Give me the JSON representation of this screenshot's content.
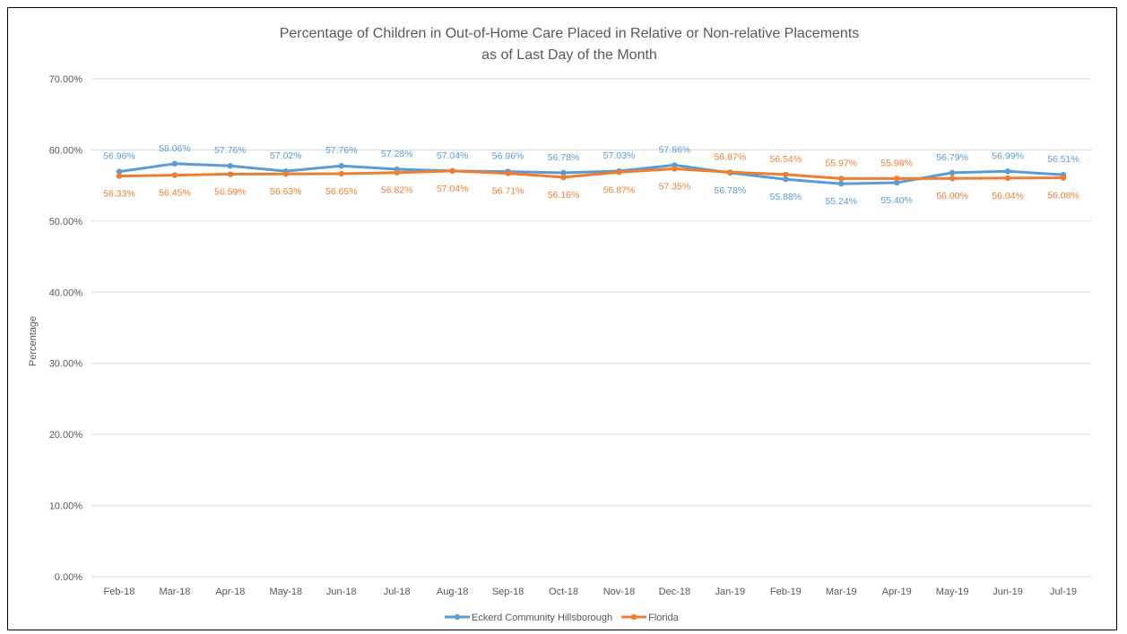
{
  "chart_data": {
    "type": "line",
    "title_lines": [
      "Percentage of Children in Out-of-Home Care Placed in Relative or Non-relative Placements",
      "as of Last Day of the Month"
    ],
    "xlabel": "",
    "ylabel": "Percentage",
    "ylim": [
      0,
      70
    ],
    "y_ticks": [
      "0.00%",
      "10.00%",
      "20.00%",
      "30.00%",
      "40.00%",
      "50.00%",
      "60.00%",
      "70.00%"
    ],
    "grid": true,
    "legend_position": "bottom",
    "categories": [
      "Feb-18",
      "Mar-18",
      "Apr-18",
      "May-18",
      "Jun-18",
      "Jul-18",
      "Aug-18",
      "Sep-18",
      "Oct-18",
      "Nov-18",
      "Dec-18",
      "Jan-19",
      "Feb-19",
      "Mar-19",
      "Apr-19",
      "May-19",
      "Jun-19",
      "Jul-19"
    ],
    "series": [
      {
        "name": "Eckerd Community Hillsborough",
        "color": "#5B9BD5",
        "values": [
          56.96,
          58.06,
          57.76,
          57.02,
          57.76,
          57.28,
          57.04,
          56.96,
          56.78,
          57.03,
          57.86,
          56.78,
          55.88,
          55.24,
          55.4,
          56.79,
          56.99,
          56.51
        ],
        "labels": [
          "56.96%",
          "58.06%",
          "57.76%",
          "57.02%",
          "57.76%",
          "57.28%",
          "57.04%",
          "56.96%",
          "56.78%",
          "57.03%",
          "57.86%",
          "56.78%",
          "55.88%",
          "55.24%",
          "55.40%",
          "56.79%",
          "56.99%",
          "56.51%"
        ],
        "label_pos": [
          "above",
          "above",
          "above",
          "above",
          "above",
          "above",
          "above",
          "above",
          "above",
          "above",
          "above",
          "below",
          "below",
          "below",
          "below",
          "above",
          "above",
          "above"
        ]
      },
      {
        "name": "Florida",
        "color": "#ED7D31",
        "values": [
          56.33,
          56.45,
          56.59,
          56.63,
          56.65,
          56.82,
          57.04,
          56.71,
          56.16,
          56.87,
          57.35,
          56.87,
          56.54,
          55.97,
          55.98,
          56.0,
          56.04,
          56.08
        ],
        "labels": [
          "56.33%",
          "56.45%",
          "56.59%",
          "56.63%",
          "56.65%",
          "56.82%",
          "57.04%",
          "56.71%",
          "56.16%",
          "56.87%",
          "57.35%",
          "56.87%",
          "56.54%",
          "55.97%",
          "55.98%",
          "56.00%",
          "56.04%",
          "56.08%"
        ],
        "label_pos": [
          "below",
          "below",
          "below",
          "below",
          "below",
          "below",
          "below",
          "below",
          "below",
          "below",
          "below",
          "above",
          "above",
          "above",
          "above",
          "below",
          "below",
          "below"
        ]
      }
    ]
  }
}
